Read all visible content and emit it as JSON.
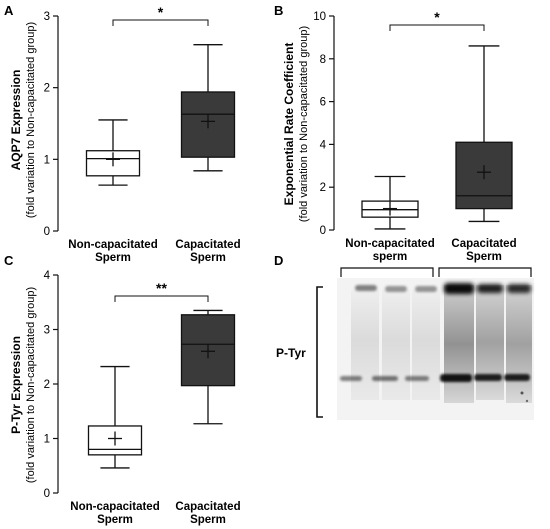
{
  "panels": {
    "A": "A",
    "B": "B",
    "C": "C",
    "D": "D"
  },
  "colors": {
    "control_fill": "#ffffff",
    "treated_fill": "#3a3a3a",
    "line": "#111111"
  },
  "chart_data": [
    {
      "panel": "A",
      "type": "box",
      "ylabel": "AQP7 Expression",
      "ylabel_sub": "(fold variation to Non-capacitated group)",
      "ylim": [
        0,
        3
      ],
      "yticks": [
        "0",
        "1",
        "2",
        "3"
      ],
      "categories": [
        [
          "Non-capacitated",
          "Sperm"
        ],
        [
          "Capacitated",
          "Sperm"
        ]
      ],
      "boxes": [
        {
          "min": 0.64,
          "q1": 0.77,
          "median": 1.01,
          "q3": 1.12,
          "max": 1.55,
          "mean": 1.0
        },
        {
          "min": 0.84,
          "q1": 1.03,
          "median": 1.63,
          "q3": 1.94,
          "max": 2.6,
          "mean": 1.53
        }
      ],
      "significance": "*"
    },
    {
      "panel": "B",
      "type": "box",
      "ylabel": "Exponential Rate Coefficient",
      "ylabel_sub": "(fold variation to Non-capacitated group)",
      "ylim": [
        0,
        10
      ],
      "yticks": [
        "0",
        "2",
        "4",
        "6",
        "8",
        "10"
      ],
      "categories": [
        [
          "Non-capacitated",
          "sperm"
        ],
        [
          "Capacitated",
          "Sperm"
        ]
      ],
      "boxes": [
        {
          "min": 0.05,
          "q1": 0.6,
          "median": 0.95,
          "q3": 1.35,
          "max": 2.5,
          "mean": 1.0
        },
        {
          "min": 0.4,
          "q1": 1.0,
          "median": 1.6,
          "q3": 4.1,
          "max": 8.6,
          "mean": 2.7
        }
      ],
      "significance": "*"
    },
    {
      "panel": "C",
      "type": "box",
      "ylabel": "P-Tyr Expression",
      "ylabel_sub": "(fold variation to Non-capacitated group)",
      "ylim": [
        0,
        4
      ],
      "yticks": [
        "0",
        "1",
        "2",
        "3",
        "4"
      ],
      "categories": [
        [
          "Non-capacitated",
          "Sperm"
        ],
        [
          "Capacitated",
          "Sperm"
        ]
      ],
      "boxes": [
        {
          "min": 0.46,
          "q1": 0.7,
          "median": 0.8,
          "q3": 1.23,
          "max": 2.32,
          "mean": 1.0
        },
        {
          "min": 1.27,
          "q1": 1.97,
          "median": 2.73,
          "q3": 3.27,
          "max": 3.35,
          "mean": 2.6
        }
      ],
      "significance": "**"
    }
  ],
  "blot": {
    "label": "P-Tyr"
  }
}
